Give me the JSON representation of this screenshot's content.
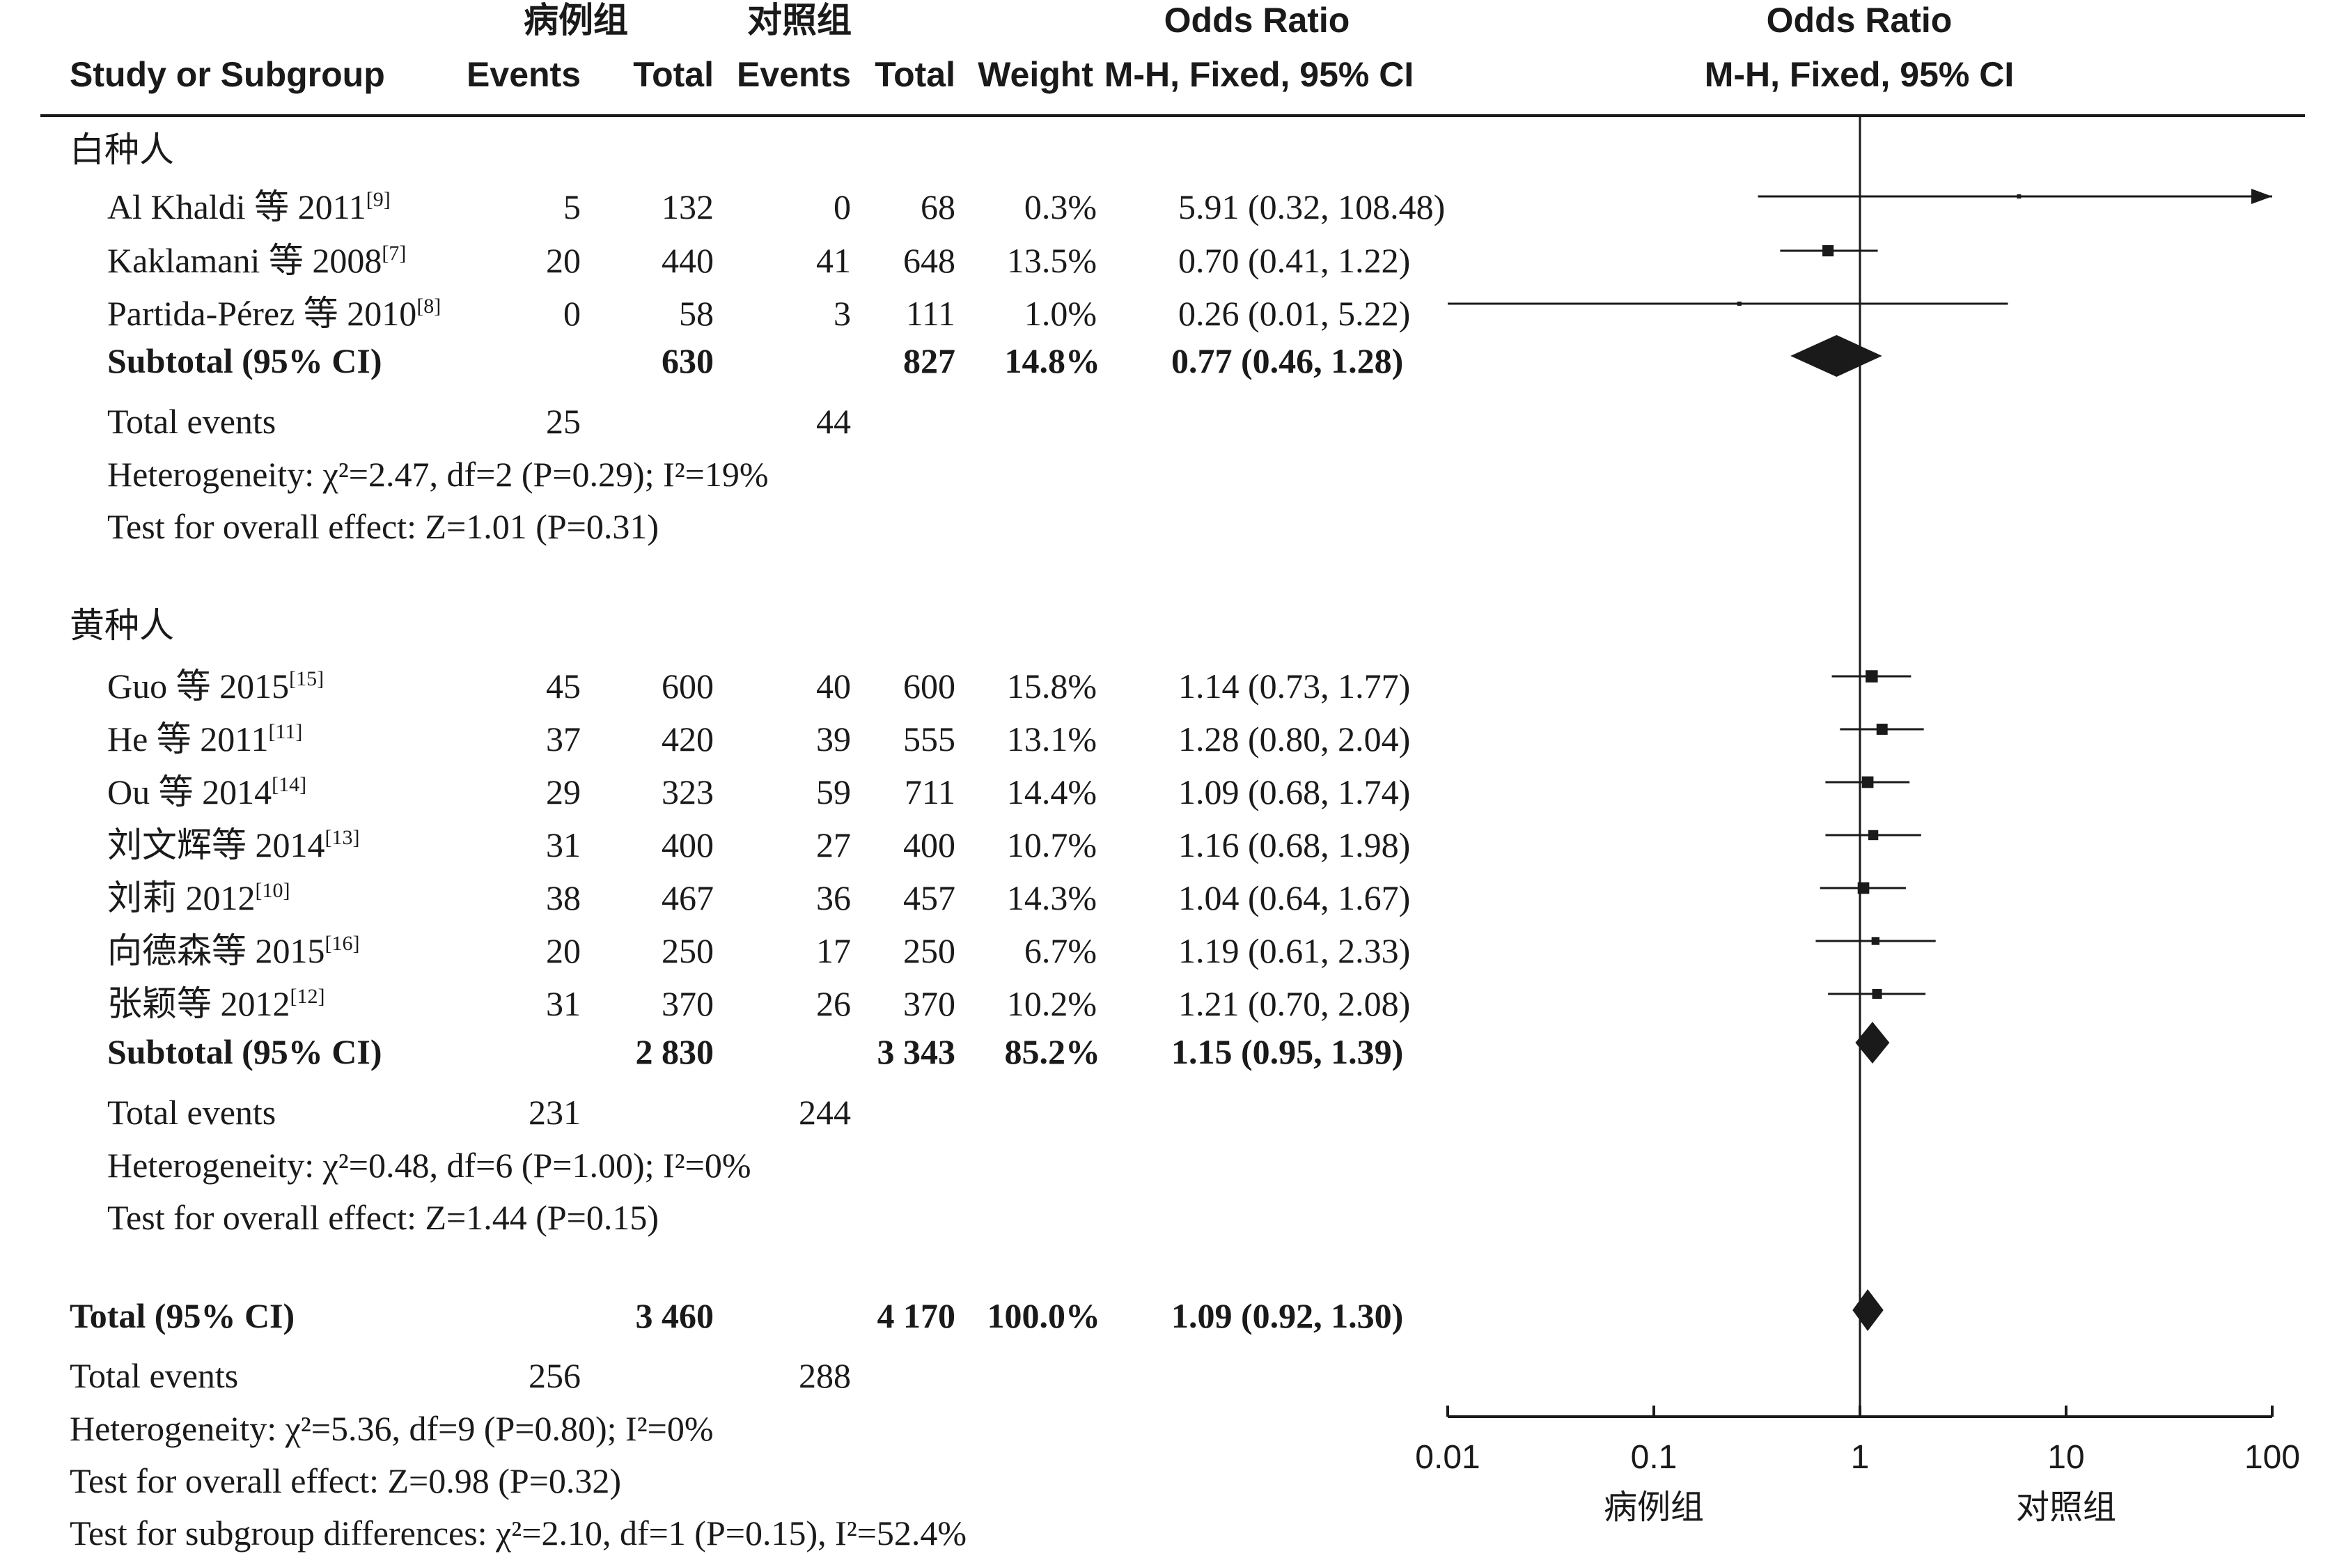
{
  "headers": {
    "case_group": "病例组",
    "control_group": "对照组",
    "study": "Study or Subgroup",
    "events": "Events",
    "total": "Total",
    "weight": "Weight",
    "odds_ratio": "Odds Ratio",
    "method": "M-H, Fixed, 95% CI"
  },
  "subgroups": [
    {
      "name": "白种人",
      "studies": [
        {
          "label": "Al Khaldi 等 2011",
          "ref": "[9]",
          "case_events": "5",
          "case_total": "132",
          "ctrl_events": "0",
          "ctrl_total": "68",
          "weight": "0.3%",
          "or_text": "5.91 (0.32, 108.48)"
        },
        {
          "label": "Kaklamani 等 2008",
          "ref": "[7]",
          "case_events": "20",
          "case_total": "440",
          "ctrl_events": "41",
          "ctrl_total": "648",
          "weight": "13.5%",
          "or_text": "0.70 (0.41, 1.22)"
        },
        {
          "label": "Partida-Pérez 等 2010",
          "ref": "[8]",
          "case_events": "0",
          "case_total": "58",
          "ctrl_events": "3",
          "ctrl_total": "111",
          "weight": "1.0%",
          "or_text": "0.26 (0.01, 5.22)"
        }
      ],
      "subtotal": {
        "label": "Subtotal (95% CI)",
        "case_total": "630",
        "ctrl_total": "827",
        "weight": "14.8%",
        "or_text": "0.77 (0.46, 1.28)"
      },
      "total_events": {
        "label": "Total events",
        "case": "25",
        "ctrl": "44"
      },
      "heterogeneity": "Heterogeneity: χ²=2.47, df=2 (P=0.29); I²=19%",
      "overall_effect": "Test for overall effect: Z=1.01 (P=0.31)"
    },
    {
      "name": "黄种人",
      "studies": [
        {
          "label": "Guo 等 2015",
          "ref": "[15]",
          "case_events": "45",
          "case_total": "600",
          "ctrl_events": "40",
          "ctrl_total": "600",
          "weight": "15.8%",
          "or_text": "1.14 (0.73, 1.77)"
        },
        {
          "label": "He 等 2011",
          "ref": "[11]",
          "case_events": "37",
          "case_total": "420",
          "ctrl_events": "39",
          "ctrl_total": "555",
          "weight": "13.1%",
          "or_text": "1.28 (0.80, 2.04)"
        },
        {
          "label": "Ou 等 2014",
          "ref": "[14]",
          "case_events": "29",
          "case_total": "323",
          "ctrl_events": "59",
          "ctrl_total": "711",
          "weight": "14.4%",
          "or_text": "1.09 (0.68, 1.74)"
        },
        {
          "label": "刘文辉等 2014",
          "ref": "[13]",
          "case_events": "31",
          "case_total": "400",
          "ctrl_events": "27",
          "ctrl_total": "400",
          "weight": "10.7%",
          "or_text": "1.16 (0.68, 1.98)"
        },
        {
          "label": "刘莉 2012",
          "ref": "[10]",
          "case_events": "38",
          "case_total": "467",
          "ctrl_events": "36",
          "ctrl_total": "457",
          "weight": "14.3%",
          "or_text": "1.04 (0.64, 1.67)"
        },
        {
          "label": "向德森等 2015",
          "ref": "[16]",
          "case_events": "20",
          "case_total": "250",
          "ctrl_events": "17",
          "ctrl_total": "250",
          "weight": "6.7%",
          "or_text": "1.19 (0.61, 2.33)"
        },
        {
          "label": "张颖等 2012",
          "ref": "[12]",
          "case_events": "31",
          "case_total": "370",
          "ctrl_events": "26",
          "ctrl_total": "370",
          "weight": "10.2%",
          "or_text": "1.21 (0.70, 2.08)"
        }
      ],
      "subtotal": {
        "label": "Subtotal (95% CI)",
        "case_total": "2 830",
        "ctrl_total": "3 343",
        "weight": "85.2%",
        "or_text": "1.15 (0.95, 1.39)"
      },
      "total_events": {
        "label": "Total events",
        "case": "231",
        "ctrl": "244"
      },
      "heterogeneity": "Heterogeneity: χ²=0.48, df=6 (P=1.00); I²=0%",
      "overall_effect": "Test for overall effect: Z=1.44 (P=0.15)"
    }
  ],
  "total": {
    "label": "Total (95% CI)",
    "case_total": "3 460",
    "ctrl_total": "4 170",
    "weight": "100.0%",
    "or_text": "1.09 (0.92, 1.30)"
  },
  "total_events": {
    "label": "Total events",
    "case": "256",
    "ctrl": "288"
  },
  "footer": {
    "heterogeneity": "Heterogeneity: χ²=5.36, df=9 (P=0.80); I²=0%",
    "overall_effect": "Test for overall effect: Z=0.98 (P=0.32)",
    "subgroup_diff": "Test for subgroup differences: χ²=2.10, df=1 (P=0.15), I²=52.4%"
  },
  "axis": {
    "ticks": [
      "0.01",
      "0.1",
      "1",
      "10",
      "100"
    ],
    "left_label": "病例组",
    "right_label": "对照组"
  },
  "chart_data": {
    "type": "forest",
    "scale": "log",
    "xlim": [
      0.01,
      100
    ],
    "reference_line": 1,
    "points": [
      {
        "study": "Al Khaldi 等 2011",
        "or": 5.91,
        "lower": 0.32,
        "upper": 108.48,
        "weight": 0.3
      },
      {
        "study": "Kaklamani 等 2008",
        "or": 0.7,
        "lower": 0.41,
        "upper": 1.22,
        "weight": 13.5
      },
      {
        "study": "Partida-Pérez 等 2010",
        "or": 0.26,
        "lower": 0.01,
        "upper": 5.22,
        "weight": 1.0
      },
      {
        "study": "Guo 等 2015",
        "or": 1.14,
        "lower": 0.73,
        "upper": 1.77,
        "weight": 15.8
      },
      {
        "study": "He 等 2011",
        "or": 1.28,
        "lower": 0.8,
        "upper": 2.04,
        "weight": 13.1
      },
      {
        "study": "Ou 等 2014",
        "or": 1.09,
        "lower": 0.68,
        "upper": 1.74,
        "weight": 14.4
      },
      {
        "study": "刘文辉等 2014",
        "or": 1.16,
        "lower": 0.68,
        "upper": 1.98,
        "weight": 10.7
      },
      {
        "study": "刘莉 2012",
        "or": 1.04,
        "lower": 0.64,
        "upper": 1.67,
        "weight": 14.3
      },
      {
        "study": "向德森等 2015",
        "or": 1.19,
        "lower": 0.61,
        "upper": 2.33,
        "weight": 6.7
      },
      {
        "study": "张颖等 2012",
        "or": 1.21,
        "lower": 0.7,
        "upper": 2.08,
        "weight": 10.2
      }
    ],
    "diamonds": [
      {
        "label": "Subtotal (95% CI)",
        "or": 0.77,
        "lower": 0.46,
        "upper": 1.28
      },
      {
        "label": "Subtotal (95% CI)",
        "or": 1.15,
        "lower": 0.95,
        "upper": 1.39
      },
      {
        "label": "Total (95% CI)",
        "or": 1.09,
        "lower": 0.92,
        "upper": 1.3
      }
    ]
  }
}
